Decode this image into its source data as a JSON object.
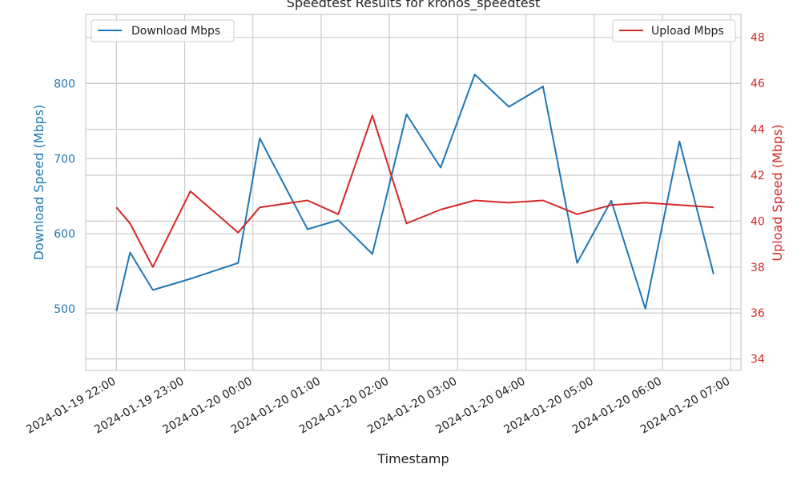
{
  "chart_data": {
    "type": "line",
    "title": "Speedtest Results for kronos_speedtest",
    "xlabel": "Timestamp",
    "ylabel_left": "Download Speed (Mbps)",
    "ylabel_right": "Upload Speed (Mbps)",
    "x_ticks": [
      "2024-01-19 22:00",
      "2024-01-19 23:00",
      "2024-01-20 00:00",
      "2024-01-20 01:00",
      "2024-01-20 02:00",
      "2024-01-20 03:00",
      "2024-01-20 04:00",
      "2024-01-20 05:00",
      "2024-01-20 06:00",
      "2024-01-20 07:00"
    ],
    "x_tick_labels": [
      "2024-01-19 22:00",
      "2024-01-19 23:00",
      "2024-01-20 00:00",
      "2024-01-20 01:00",
      "2024-01-20 02:00",
      "2024-01-20 03:00",
      "2024-01-20 04:00",
      "2024-01-20 05:00",
      "2024-01-20 06:00",
      "2024-01-20 07:00"
    ],
    "xlim": [
      "2024-01-19 21:33",
      "2024-01-20 07:09"
    ],
    "y_left": {
      "ticks": [
        500,
        600,
        700,
        800
      ],
      "ylim": [
        418,
        892
      ],
      "color": "#1f77b4"
    },
    "y_right": {
      "ticks": [
        34,
        36,
        38,
        40,
        42,
        44,
        46,
        48
      ],
      "ylim": [
        33.5,
        49.0
      ],
      "color": "#d62728"
    },
    "grid": true,
    "series": [
      {
        "name": "Download Mbps",
        "axis": "left",
        "color": "#1f77b4",
        "legend_position": "top-left",
        "x": [
          "2024-01-19 22:00",
          "2024-01-19 22:12",
          "2024-01-19 22:32",
          "2024-01-19 23:05",
          "2024-01-19 23:47",
          "2024-01-20 00:06",
          "2024-01-20 00:48",
          "2024-01-20 01:15",
          "2024-01-20 01:45",
          "2024-01-20 02:15",
          "2024-01-20 02:45",
          "2024-01-20 03:15",
          "2024-01-20 03:45",
          "2024-01-20 04:15",
          "2024-01-20 04:45",
          "2024-01-20 05:15",
          "2024-01-20 05:45",
          "2024-01-20 06:15",
          "2024-01-20 06:45"
        ],
        "values": [
          497,
          575,
          525,
          540,
          561,
          727,
          606,
          618,
          573,
          759,
          688,
          812,
          769,
          796,
          561,
          644,
          500,
          723,
          546
        ]
      },
      {
        "name": "Upload Mbps",
        "axis": "right",
        "color": "#d62728",
        "legend_position": "top-right",
        "x": [
          "2024-01-19 22:00",
          "2024-01-19 22:12",
          "2024-01-19 22:32",
          "2024-01-19 23:05",
          "2024-01-19 23:47",
          "2024-01-20 00:06",
          "2024-01-20 00:48",
          "2024-01-20 01:15",
          "2024-01-20 01:45",
          "2024-01-20 02:15",
          "2024-01-20 02:45",
          "2024-01-20 03:15",
          "2024-01-20 03:45",
          "2024-01-20 04:15",
          "2024-01-20 04:45",
          "2024-01-20 05:15",
          "2024-01-20 05:45",
          "2024-01-20 06:15",
          "2024-01-20 06:45"
        ],
        "values": [
          40.6,
          39.9,
          38.0,
          41.3,
          39.5,
          40.6,
          40.9,
          40.3,
          44.6,
          39.9,
          40.5,
          40.9,
          40.8,
          40.9,
          40.3,
          40.7,
          40.8,
          40.7,
          40.6
        ]
      }
    ]
  }
}
